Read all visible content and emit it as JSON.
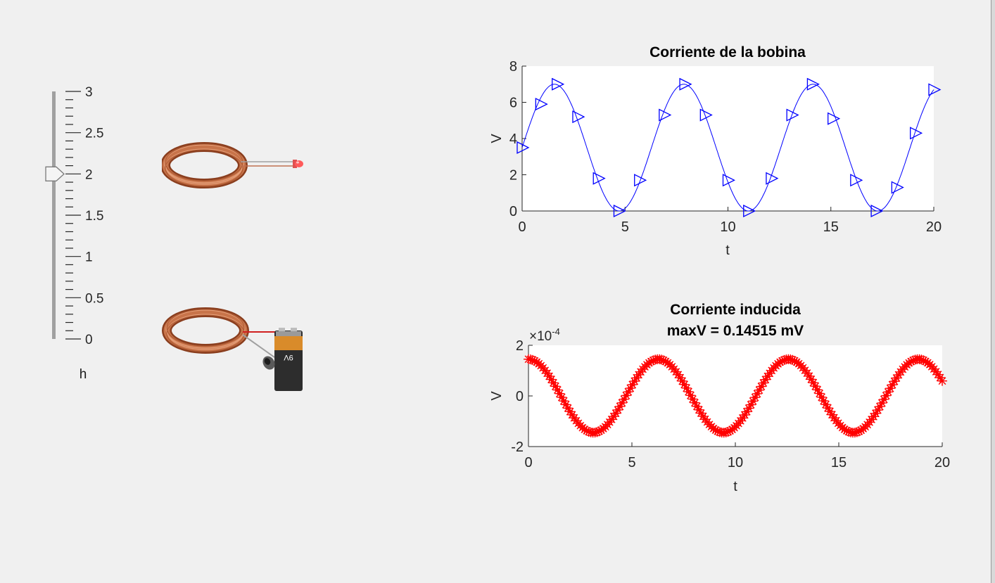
{
  "slider": {
    "label": "h",
    "min": 0,
    "max": 3,
    "value": 2,
    "major_ticks": [
      "0",
      "0.5",
      "1",
      "1.5",
      "2",
      "2.5",
      "3"
    ]
  },
  "images": {
    "coil_led": "coil-with-led",
    "coil_battery": "coil-with-9v-battery",
    "battery_text": "9V"
  },
  "colors": {
    "plot1_line": "#0000ff",
    "plot2_line": "#ff0000",
    "coil": "#b5603a",
    "led": "#ff4040"
  },
  "chart_data": [
    {
      "type": "line",
      "title": "Corriente de la bobina",
      "xlabel": "t",
      "ylabel": "V",
      "xlim": [
        0,
        20
      ],
      "ylim": [
        0,
        8
      ],
      "xticks": [
        "0",
        "5",
        "10",
        "15",
        "20"
      ],
      "yticks": [
        "0",
        "2",
        "4",
        "6",
        "8"
      ],
      "marker": "triangle-right",
      "series": [
        {
          "x": [
            0,
            0.9,
            1.7,
            2.7,
            3.7,
            4.7,
            5.7,
            6.9,
            7.9,
            8.9,
            10.0,
            11.0,
            12.1,
            13.1,
            14.1,
            15.1,
            16.2,
            17.2,
            18.2,
            19.1,
            20.0
          ],
          "values": [
            3.5,
            5.9,
            7.0,
            5.2,
            1.8,
            0.0,
            1.7,
            5.3,
            7.0,
            5.3,
            1.7,
            0.0,
            1.8,
            5.3,
            7.0,
            5.1,
            1.7,
            0.0,
            1.3,
            4.3,
            6.7
          ]
        }
      ]
    },
    {
      "type": "line",
      "title": "Corriente inducida",
      "subtitle": "maxV = 0.14515 mV",
      "xlabel": "t",
      "ylabel": "V",
      "exponent_label": "×10",
      "exponent_power": "-4",
      "xlim": [
        0,
        20
      ],
      "ylim": [
        -2,
        2
      ],
      "xticks": [
        "0",
        "5",
        "10",
        "15",
        "20"
      ],
      "yticks": [
        "-2",
        "0",
        "2"
      ],
      "marker": "asterisk",
      "amplitude": 1.4515,
      "phase_period": 6.283,
      "sample_count": 200
    }
  ]
}
